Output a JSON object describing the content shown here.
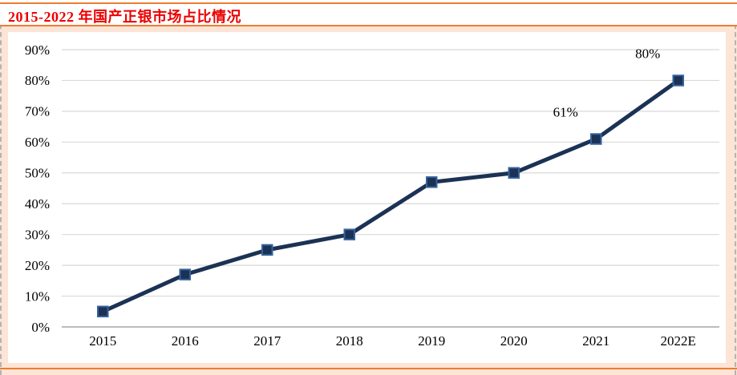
{
  "header": {
    "title": "2015-2022 年国产正银市场占比情况"
  },
  "colors": {
    "title_red": "#EC0000",
    "rule_orange": "#ED7D31",
    "page_background": "#FCE4D6",
    "chart_background": "#FFFFFF",
    "series_line": "#1B3255",
    "marker_fill": "#1B3255",
    "marker_border": "#35639C",
    "gridline": "#D9D9D9",
    "axis_line": "#A6A6A6",
    "tick_text": "#000000"
  },
  "chart_data": {
    "type": "line",
    "title": "2015-2022 年国产正银市场占比情况",
    "categories": [
      "2015",
      "2016",
      "2017",
      "2018",
      "2019",
      "2020",
      "2021",
      "2022E"
    ],
    "values": [
      5,
      17,
      25,
      30,
      47,
      50,
      61,
      80
    ],
    "unit": "%",
    "xlabel": "",
    "ylabel": "",
    "ylim": [
      0,
      90
    ],
    "y_tick_step": 10,
    "y_tick_labels": [
      "0%",
      "10%",
      "20%",
      "30%",
      "40%",
      "50%",
      "60%",
      "70%",
      "80%",
      "90%"
    ],
    "grid": true,
    "legend": "none",
    "marker_shape": "square",
    "data_labels": [
      {
        "index": 6,
        "text": "61%"
      },
      {
        "index": 7,
        "text": "80%"
      }
    ]
  }
}
